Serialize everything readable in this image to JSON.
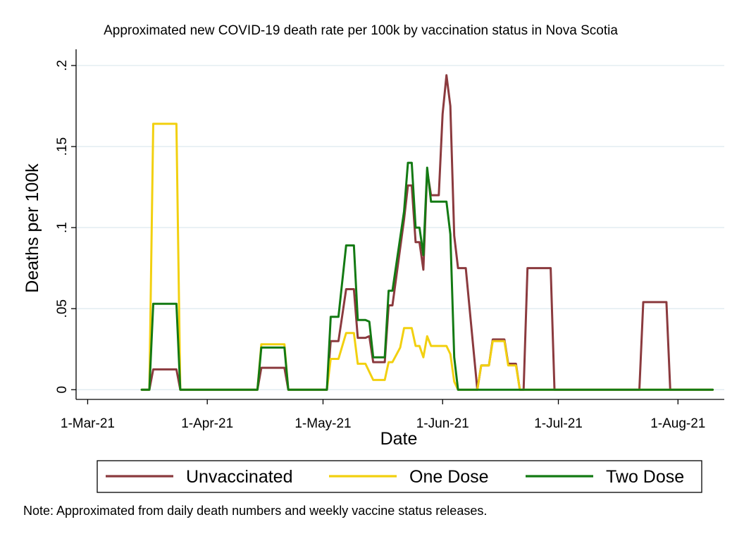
{
  "chart_data": {
    "type": "line",
    "title": "Approximated new COVID-19 death rate per 100k by vaccination status in Nova Scotia",
    "xlabel": "Date",
    "ylabel": "Deaths per 100k",
    "note": "Note: Approximated from daily death numbers and weekly vaccine status releases.",
    "x_tick_labels": [
      "1-Mar-21",
      "1-Apr-21",
      "1-May-21",
      "1-Jun-21",
      "1-Jul-21",
      "1-Aug-21"
    ],
    "x_tick_dates": [
      "2021-03-01",
      "2021-04-01",
      "2021-05-01",
      "2021-06-01",
      "2021-07-01",
      "2021-08-01"
    ],
    "y_ticks": [
      0,
      0.05,
      0.1,
      0.15,
      0.2
    ],
    "y_tick_labels": [
      "0",
      ".05",
      ".1",
      ".15",
      ".2"
    ],
    "xlim": [
      "2021-02-26",
      "2021-08-13"
    ],
    "ylim": [
      -0.006,
      0.21
    ],
    "grid": "horizontal",
    "legend_position": "bottom",
    "series": [
      {
        "name": "Unvaccinated",
        "color": "#8b3a3e",
        "points": [
          [
            "2021-03-15",
            0
          ],
          [
            "2021-03-17",
            0
          ],
          [
            "2021-03-18",
            0.0125
          ],
          [
            "2021-03-24",
            0.0125
          ],
          [
            "2021-03-25",
            0
          ],
          [
            "2021-04-14",
            0
          ],
          [
            "2021-04-15",
            0.0135
          ],
          [
            "2021-04-21",
            0.0135
          ],
          [
            "2021-04-22",
            0
          ],
          [
            "2021-05-02",
            0
          ],
          [
            "2021-05-03",
            0.03
          ],
          [
            "2021-05-05",
            0.03
          ],
          [
            "2021-05-07",
            0.062
          ],
          [
            "2021-05-09",
            0.062
          ],
          [
            "2021-05-10",
            0.032
          ],
          [
            "2021-05-12",
            0.032
          ],
          [
            "2021-05-13",
            0.033
          ],
          [
            "2021-05-14",
            0.017
          ],
          [
            "2021-05-17",
            0.017
          ],
          [
            "2021-05-18",
            0.052
          ],
          [
            "2021-05-19",
            0.052
          ],
          [
            "2021-05-22",
            0.105
          ],
          [
            "2021-05-23",
            0.126
          ],
          [
            "2021-05-24",
            0.126
          ],
          [
            "2021-05-25",
            0.091
          ],
          [
            "2021-05-26",
            0.091
          ],
          [
            "2021-05-27",
            0.074
          ],
          [
            "2021-05-28",
            0.135
          ],
          [
            "2021-05-29",
            0.12
          ],
          [
            "2021-05-31",
            0.12
          ],
          [
            "2021-06-01",
            0.17
          ],
          [
            "2021-06-02",
            0.194
          ],
          [
            "2021-06-03",
            0.175
          ],
          [
            "2021-06-04",
            0.095
          ],
          [
            "2021-06-05",
            0.075
          ],
          [
            "2021-06-07",
            0.075
          ],
          [
            "2021-06-09",
            0.025
          ],
          [
            "2021-06-10",
            0
          ],
          [
            "2021-06-11",
            0.015
          ],
          [
            "2021-06-13",
            0.015
          ],
          [
            "2021-06-14",
            0.031
          ],
          [
            "2021-06-17",
            0.031
          ],
          [
            "2021-06-18",
            0.016
          ],
          [
            "2021-06-20",
            0.016
          ],
          [
            "2021-06-21",
            0
          ],
          [
            "2021-06-22",
            0
          ],
          [
            "2021-06-23",
            0.075
          ],
          [
            "2021-06-29",
            0.075
          ],
          [
            "2021-06-30",
            0
          ],
          [
            "2021-07-22",
            0
          ],
          [
            "2021-07-23",
            0.054
          ],
          [
            "2021-07-29",
            0.054
          ],
          [
            "2021-07-30",
            0
          ],
          [
            "2021-08-10",
            0
          ]
        ]
      },
      {
        "name": "One Dose",
        "color": "#f2d00f",
        "points": [
          [
            "2021-03-15",
            0
          ],
          [
            "2021-03-17",
            0
          ],
          [
            "2021-03-18",
            0.164
          ],
          [
            "2021-03-24",
            0.164
          ],
          [
            "2021-03-25",
            0
          ],
          [
            "2021-04-14",
            0
          ],
          [
            "2021-04-15",
            0.028
          ],
          [
            "2021-04-21",
            0.028
          ],
          [
            "2021-04-22",
            0
          ],
          [
            "2021-05-02",
            0
          ],
          [
            "2021-05-03",
            0.019
          ],
          [
            "2021-05-05",
            0.019
          ],
          [
            "2021-05-07",
            0.035
          ],
          [
            "2021-05-09",
            0.035
          ],
          [
            "2021-05-10",
            0.016
          ],
          [
            "2021-05-12",
            0.016
          ],
          [
            "2021-05-14",
            0.006
          ],
          [
            "2021-05-17",
            0.006
          ],
          [
            "2021-05-18",
            0.017
          ],
          [
            "2021-05-19",
            0.017
          ],
          [
            "2021-05-21",
            0.026
          ],
          [
            "2021-05-22",
            0.038
          ],
          [
            "2021-05-24",
            0.038
          ],
          [
            "2021-05-25",
            0.027
          ],
          [
            "2021-05-26",
            0.027
          ],
          [
            "2021-05-27",
            0.02
          ],
          [
            "2021-05-28",
            0.033
          ],
          [
            "2021-05-29",
            0.027
          ],
          [
            "2021-06-02",
            0.027
          ],
          [
            "2021-06-03",
            0.022
          ],
          [
            "2021-06-04",
            0.005
          ],
          [
            "2021-06-05",
            0
          ],
          [
            "2021-06-10",
            0
          ],
          [
            "2021-06-11",
            0.015
          ],
          [
            "2021-06-13",
            0.015
          ],
          [
            "2021-06-14",
            0.03
          ],
          [
            "2021-06-17",
            0.03
          ],
          [
            "2021-06-18",
            0.015
          ],
          [
            "2021-06-20",
            0.015
          ],
          [
            "2021-06-21",
            0
          ],
          [
            "2021-08-10",
            0
          ]
        ]
      },
      {
        "name": "Two Dose",
        "color": "#137a13",
        "points": [
          [
            "2021-03-15",
            0
          ],
          [
            "2021-03-17",
            0
          ],
          [
            "2021-03-18",
            0.053
          ],
          [
            "2021-03-24",
            0.053
          ],
          [
            "2021-03-25",
            0
          ],
          [
            "2021-04-14",
            0
          ],
          [
            "2021-04-15",
            0.026
          ],
          [
            "2021-04-21",
            0.026
          ],
          [
            "2021-04-22",
            0
          ],
          [
            "2021-05-02",
            0
          ],
          [
            "2021-05-03",
            0.045
          ],
          [
            "2021-05-05",
            0.045
          ],
          [
            "2021-05-07",
            0.089
          ],
          [
            "2021-05-09",
            0.089
          ],
          [
            "2021-05-10",
            0.043
          ],
          [
            "2021-05-12",
            0.043
          ],
          [
            "2021-05-13",
            0.042
          ],
          [
            "2021-05-14",
            0.02
          ],
          [
            "2021-05-17",
            0.02
          ],
          [
            "2021-05-18",
            0.061
          ],
          [
            "2021-05-19",
            0.061
          ],
          [
            "2021-05-22",
            0.11
          ],
          [
            "2021-05-23",
            0.14
          ],
          [
            "2021-05-24",
            0.14
          ],
          [
            "2021-05-25",
            0.1
          ],
          [
            "2021-05-26",
            0.1
          ],
          [
            "2021-05-27",
            0.083
          ],
          [
            "2021-05-28",
            0.137
          ],
          [
            "2021-05-29",
            0.116
          ],
          [
            "2021-06-02",
            0.116
          ],
          [
            "2021-06-03",
            0.096
          ],
          [
            "2021-06-04",
            0.02
          ],
          [
            "2021-06-05",
            0
          ],
          [
            "2021-08-10",
            0
          ]
        ]
      }
    ]
  }
}
